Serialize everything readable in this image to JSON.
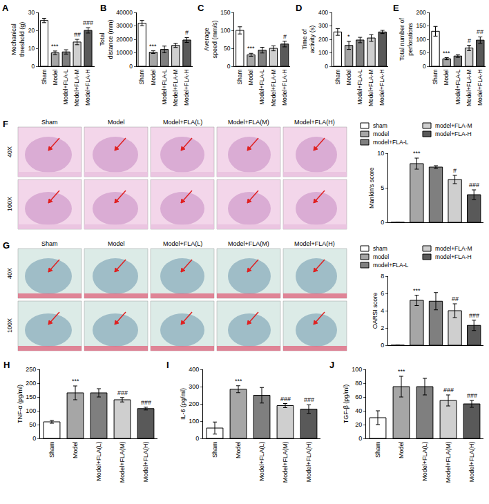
{
  "chart_data": [
    {
      "panel": "A",
      "type": "bar",
      "y_label": "Mechanical threshold (g)",
      "categories": [
        "Sham",
        "Model",
        "Model+FLA-L",
        "Model+FLA-M",
        "Model+FLA-H"
      ],
      "values": [
        25.5,
        7.5,
        8,
        13.5,
        20
      ],
      "errors": [
        1.2,
        1,
        1.2,
        1.5,
        1.5
      ],
      "significance": [
        null,
        "***",
        null,
        "##",
        "###"
      ],
      "colors": [
        "#ffffff",
        "#a6a6a6",
        "#7f7f7f",
        "#cfcfcf",
        "#595959"
      ],
      "ylim": [
        0,
        30
      ],
      "yticks": [
        0,
        10,
        20,
        30
      ]
    },
    {
      "panel": "B",
      "type": "bar",
      "y_label": "Total distance (mm)",
      "categories": [
        "Sham",
        "Model",
        "Model+FLA-L",
        "Model+FLA-M",
        "Model+FLA-H"
      ],
      "values": [
        32000,
        10500,
        12500,
        15500,
        19500
      ],
      "errors": [
        2000,
        1000,
        2500,
        1500,
        1800
      ],
      "significance": [
        null,
        "***",
        null,
        null,
        "#"
      ],
      "colors": [
        "#ffffff",
        "#a6a6a6",
        "#7f7f7f",
        "#cfcfcf",
        "#595959"
      ],
      "ylim": [
        0,
        40000
      ],
      "yticks": [
        0,
        10000,
        20000,
        30000,
        40000
      ]
    },
    {
      "panel": "C",
      "type": "bar",
      "y_label": "Average speed (mm/s)",
      "categories": [
        "Sham",
        "Model",
        "Model+FLA-L",
        "Model+FLA-M",
        "Model+FLA-H"
      ],
      "values": [
        100,
        32,
        45,
        50,
        62
      ],
      "errors": [
        10,
        4,
        8,
        7,
        8
      ],
      "significance": [
        null,
        "***",
        null,
        null,
        "#"
      ],
      "colors": [
        "#ffffff",
        "#a6a6a6",
        "#7f7f7f",
        "#cfcfcf",
        "#595959"
      ],
      "ylim": [
        0,
        150
      ],
      "yticks": [
        0,
        50,
        100,
        150
      ]
    },
    {
      "panel": "D",
      "type": "bar",
      "y_label": "Time of activity (s)",
      "categories": [
        "Sham",
        "Model",
        "Model+FLA-L",
        "Model+FLA-M",
        "Model+FLA-H"
      ],
      "values": [
        255,
        155,
        195,
        210,
        255
      ],
      "errors": [
        25,
        30,
        20,
        25,
        12
      ],
      "significance": [
        null,
        "*",
        null,
        null,
        null
      ],
      "colors": [
        "#ffffff",
        "#a6a6a6",
        "#7f7f7f",
        "#cfcfcf",
        "#595959"
      ],
      "ylim": [
        0,
        400
      ],
      "yticks": [
        0,
        100,
        200,
        300,
        400
      ]
    },
    {
      "panel": "E",
      "type": "bar",
      "y_label": "Total number of perforations",
      "categories": [
        "Sham",
        "Model",
        "Model+FLA-L",
        "Model+FLA-M",
        "Model+FLA-H"
      ],
      "values": [
        130,
        28,
        38,
        68,
        97
      ],
      "errors": [
        18,
        4,
        5,
        10,
        12
      ],
      "significance": [
        null,
        "***",
        null,
        "#",
        "##"
      ],
      "colors": [
        "#ffffff",
        "#a6a6a6",
        "#7f7f7f",
        "#cfcfcf",
        "#595959"
      ],
      "ylim": [
        0,
        200
      ],
      "yticks": [
        0,
        50,
        100,
        150,
        200
      ]
    },
    {
      "type": "bar",
      "y_label": "Mankin's score",
      "categories": [
        "sham",
        "model",
        "model+FLA-L",
        "model+FLA-M",
        "model+FLA-H"
      ],
      "values": [
        0,
        8.5,
        8,
        6.2,
        4
      ],
      "errors": [
        0,
        0.8,
        0.2,
        0.6,
        0.7
      ],
      "significance": [
        null,
        "***",
        null,
        "#",
        "###"
      ],
      "colors": [
        "#ffffff",
        "#a6a6a6",
        "#7f7f7f",
        "#cfcfcf",
        "#595959"
      ],
      "ylim": [
        0,
        10
      ],
      "yticks": [
        0,
        5,
        10
      ],
      "tick_labels": "y",
      "legend": "top"
    },
    {
      "type": "bar",
      "y_label": "OARSI score",
      "categories": [
        "sham",
        "model",
        "model+FLA-L",
        "model+FLA-M",
        "model+FLA-H"
      ],
      "values": [
        0,
        5.2,
        5.1,
        4,
        2.3
      ],
      "errors": [
        0,
        0.6,
        1,
        0.8,
        0.6
      ],
      "significance": [
        null,
        "***",
        null,
        "##",
        "###"
      ],
      "colors": [
        "#ffffff",
        "#a6a6a6",
        "#7f7f7f",
        "#cfcfcf",
        "#595959"
      ],
      "ylim": [
        0,
        8
      ],
      "yticks": [
        0,
        2,
        4,
        6,
        8
      ],
      "tick_labels": "y",
      "legend": "top"
    },
    {
      "panel": "H",
      "type": "bar",
      "y_label": "TNF-α (pg/ml)",
      "categories": [
        "Sham",
        "Model",
        "Model+FLA(L)",
        "Model+FLA(M)",
        "Model+FLA(H)"
      ],
      "values": [
        60,
        165,
        165,
        140,
        108
      ],
      "errors": [
        5,
        25,
        15,
        8,
        5
      ],
      "significance": [
        null,
        "***",
        null,
        "###",
        "###"
      ],
      "colors": [
        "#ffffff",
        "#a6a6a6",
        "#7f7f7f",
        "#cfcfcf",
        "#595959"
      ],
      "ylim": [
        0,
        250
      ],
      "yticks": [
        0,
        50,
        100,
        150,
        200,
        250
      ]
    },
    {
      "panel": "I",
      "type": "bar",
      "y_label": "IL-6 (pg/ml)",
      "categories": [
        "Sham",
        "Model",
        "Model+FLA(L)",
        "Model+FLA(M)",
        "Model+FLA(H)"
      ],
      "values": [
        60,
        285,
        250,
        190,
        170
      ],
      "errors": [
        35,
        20,
        45,
        12,
        25
      ],
      "significance": [
        null,
        "***",
        null,
        "###",
        "###"
      ],
      "colors": [
        "#ffffff",
        "#a6a6a6",
        "#7f7f7f",
        "#cfcfcf",
        "#595959"
      ],
      "ylim": [
        0,
        400
      ],
      "yticks": [
        0,
        100,
        200,
        300,
        400
      ]
    },
    {
      "panel": "J",
      "type": "bar",
      "y_label": "TGF-β (pg/ml)",
      "categories": [
        "Sham",
        "Model",
        "Model+FLA(L)",
        "Model+FLA(M)",
        "Model+FLA(H)"
      ],
      "values": [
        30,
        75,
        75,
        55,
        50
      ],
      "errors": [
        10,
        15,
        12,
        8,
        5
      ],
      "significance": [
        null,
        "***",
        null,
        "###",
        "###"
      ],
      "colors": [
        "#ffffff",
        "#a6a6a6",
        "#7f7f7f",
        "#cfcfcf",
        "#595959"
      ],
      "ylim": [
        0,
        100
      ],
      "yticks": [
        0,
        20,
        40,
        60,
        80,
        100
      ]
    }
  ],
  "image_panels": [
    {
      "panel": "F",
      "columns": [
        "Sham",
        "Model",
        "Model+FLA(L)",
        "Model+FLA(M)",
        "Model+FLA(H)"
      ],
      "rows": [
        "40X",
        "100X"
      ]
    },
    {
      "panel": "G",
      "columns": [
        "Sham",
        "Model",
        "Model+FLA(L)",
        "Model+FLA(M)",
        "Model+FLA(H)"
      ],
      "rows": [
        "40X",
        "100X"
      ]
    }
  ]
}
